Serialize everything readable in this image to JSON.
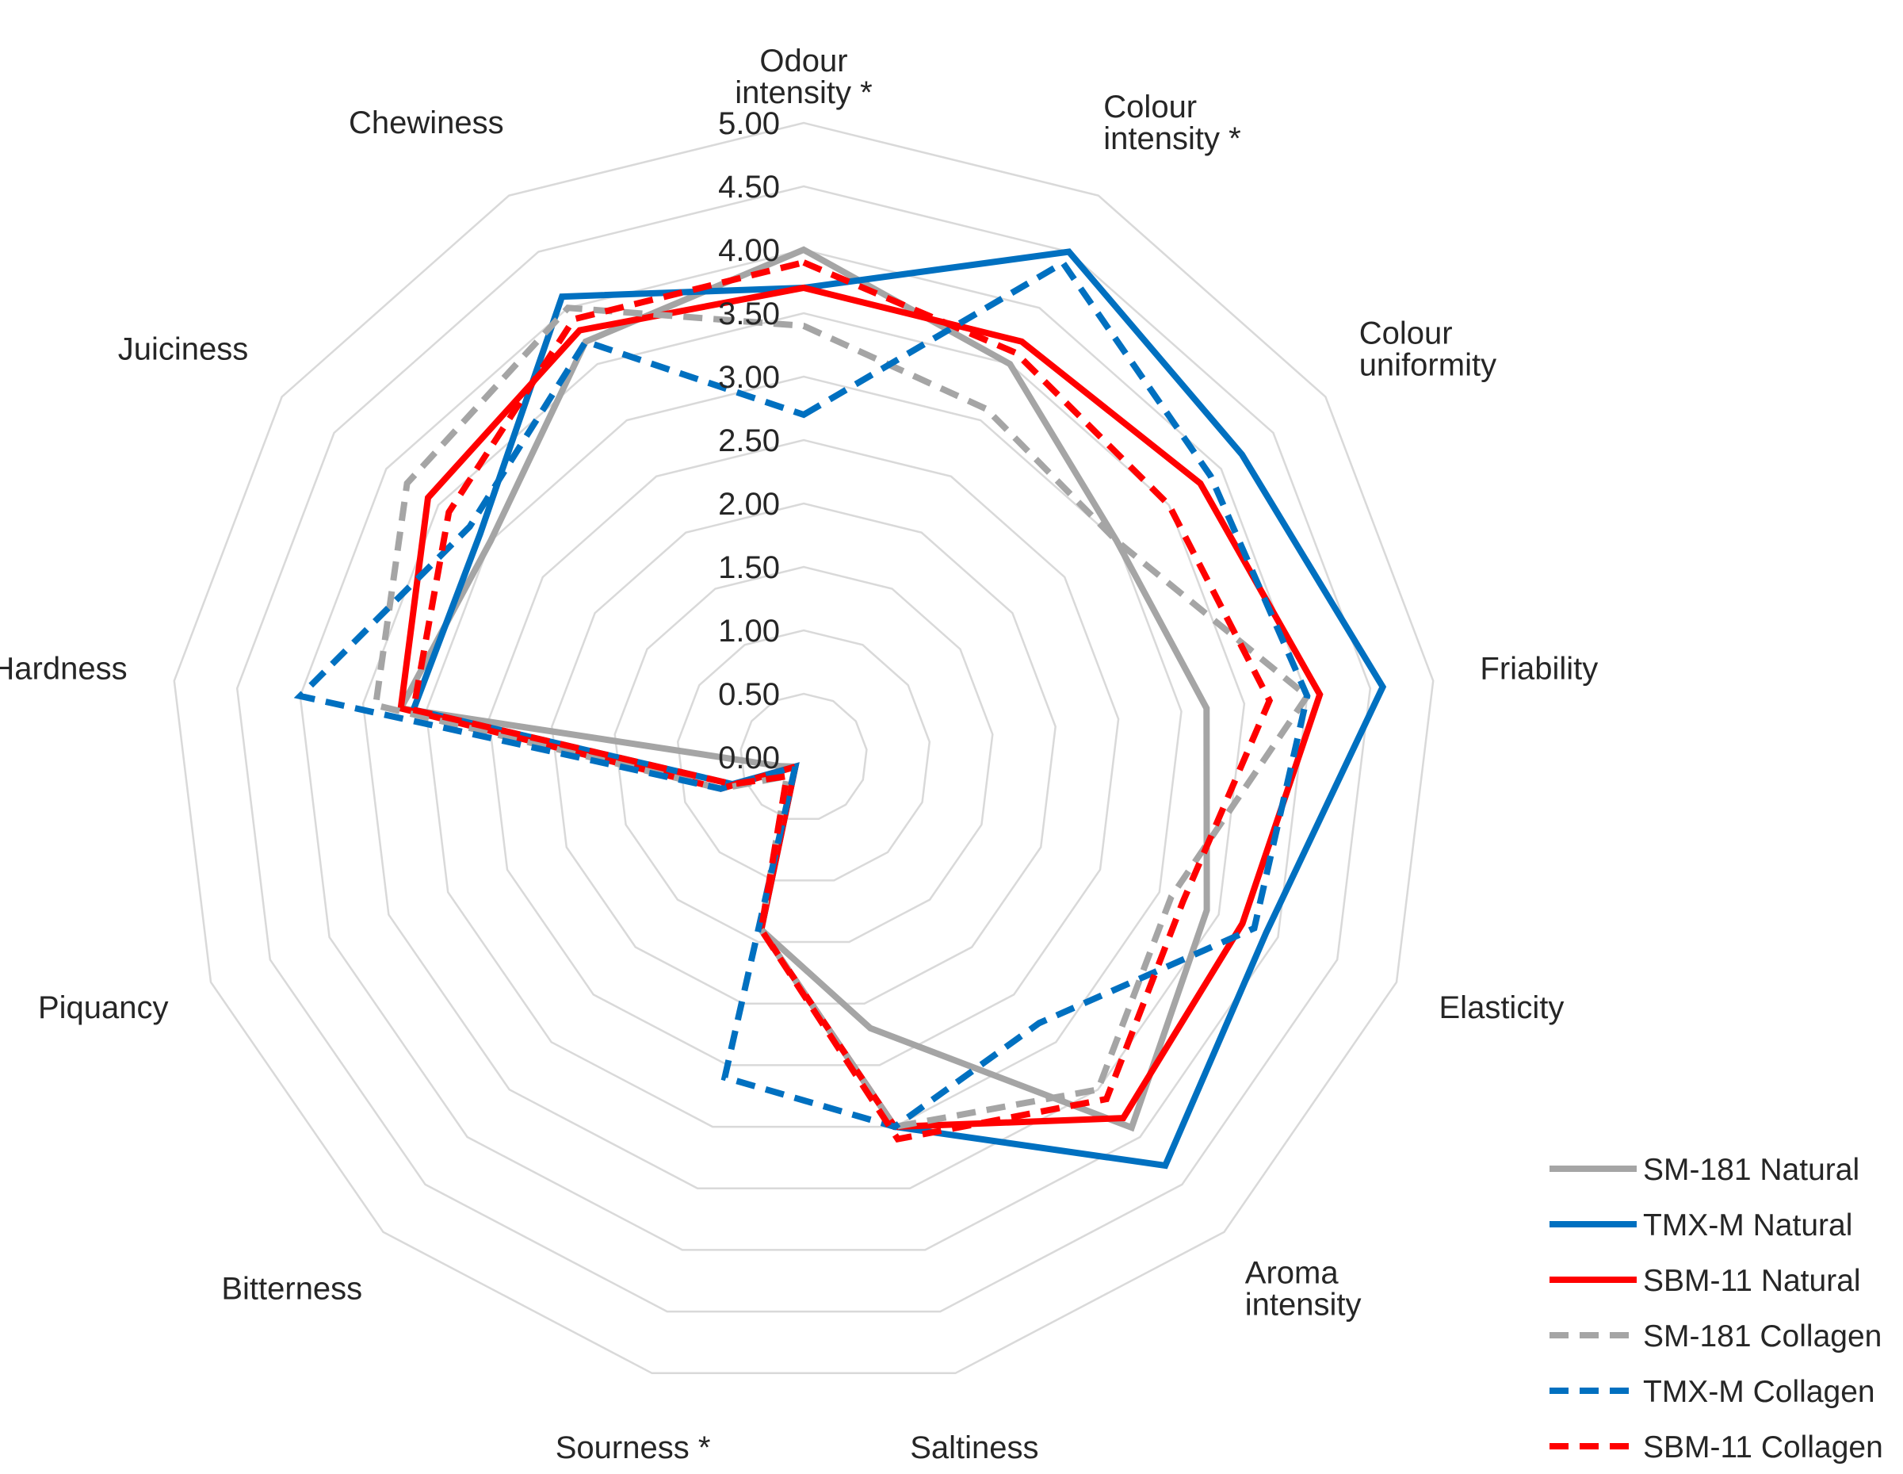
{
  "chart_data": {
    "type": "radar",
    "title": "",
    "axes": [
      [
        "Odour",
        "intensity *"
      ],
      [
        "Colour",
        "intensity *"
      ],
      [
        "Colour",
        "uniformity"
      ],
      [
        "Friability"
      ],
      [
        "Elasticity"
      ],
      [
        "Aroma",
        "intensity"
      ],
      [
        "Saltiness"
      ],
      [
        "Sourness *"
      ],
      [
        "Bitterness"
      ],
      [
        "Piquancy"
      ],
      [
        "Hardness"
      ],
      [
        "Juiciness"
      ],
      [
        "Chewiness"
      ]
    ],
    "range": [
      0,
      5
    ],
    "ticks": [
      "0.00",
      "0.50",
      "1.00",
      "1.50",
      "2.00",
      "2.50",
      "3.00",
      "3.50",
      "4.00",
      "4.50",
      "5.00"
    ],
    "grid": true,
    "legend_position": "bottom-right",
    "series": [
      {
        "name": "SM-181 Natural",
        "color": "#a5a5a5",
        "dash": "solid",
        "values": [
          4.0,
          3.5,
          3.0,
          3.2,
          3.4,
          3.9,
          2.2,
          1.4,
          0.1,
          0.2,
          3.2,
          3.0,
          3.7
        ]
      },
      {
        "name": "TMX-M Natural",
        "color": "#0070c0",
        "dash": "solid",
        "values": [
          3.7,
          4.5,
          4.2,
          4.6,
          3.9,
          4.3,
          3.0,
          1.4,
          0.1,
          0.6,
          3.1,
          3.1,
          4.1
        ]
      },
      {
        "name": "SBM-11 Natural",
        "color": "#ff0000",
        "dash": "solid",
        "values": [
          3.7,
          3.7,
          3.8,
          4.1,
          3.7,
          3.8,
          3.0,
          1.4,
          0.1,
          0.7,
          3.2,
          3.6,
          3.8
        ]
      },
      {
        "name": "SM-181 Collagen",
        "color": "#a5a5a5",
        "dash": "dashed",
        "values": [
          3.4,
          3.1,
          3.0,
          4.0,
          3.1,
          3.5,
          3.0,
          1.4,
          0.2,
          0.7,
          3.4,
          3.8,
          4.0
        ]
      },
      {
        "name": "TMX-M Collagen",
        "color": "#0070c0",
        "dash": "dashed",
        "values": [
          2.7,
          4.4,
          3.9,
          4.0,
          3.8,
          2.8,
          3.0,
          2.6,
          0.1,
          0.7,
          4.0,
          3.2,
          3.7
        ]
      },
      {
        "name": "SBM-11 Collagen",
        "color": "#ff0000",
        "dash": "dashed",
        "values": [
          3.9,
          3.6,
          3.5,
          3.7,
          3.2,
          3.6,
          3.1,
          1.4,
          0.2,
          0.6,
          3.1,
          3.4,
          3.9
        ]
      }
    ]
  }
}
